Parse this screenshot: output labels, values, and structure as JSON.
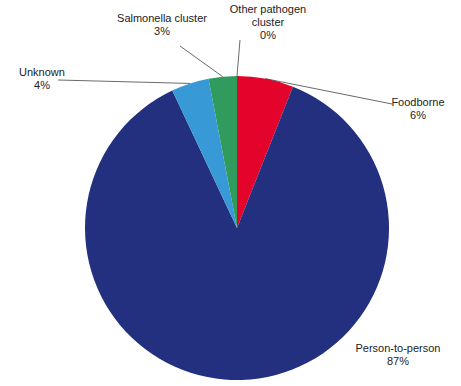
{
  "chart_data": {
    "type": "pie",
    "categories": [
      "Foodborne",
      "Person-to-person",
      "Unknown",
      "Salmonella cluster",
      "Other pathogen cluster"
    ],
    "values": [
      6,
      87,
      4,
      3,
      0
    ],
    "value_labels": [
      "6%",
      "87%",
      "4%",
      "3%",
      "0%"
    ],
    "colors": [
      "#e3032b",
      "#23307f",
      "#3799d6",
      "#2f9b5d",
      "#f1e01b"
    ]
  }
}
